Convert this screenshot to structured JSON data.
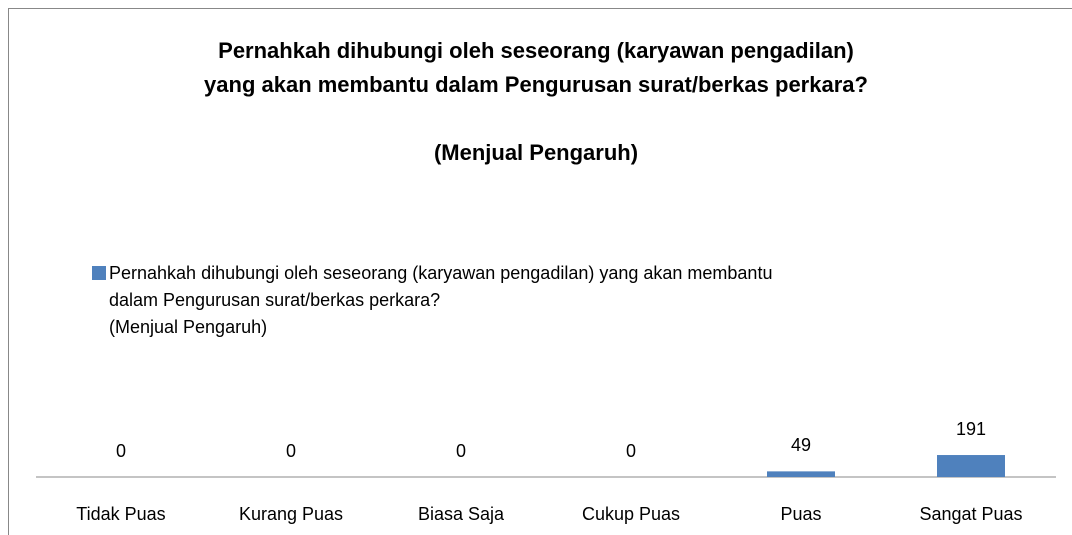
{
  "chart_data": {
    "type": "bar",
    "title": "Pernahkah dihubungi oleh seseorang (karyawan pengadilan)\nyang akan membantu dalam Pengurusan surat/berkas perkara?",
    "subtitle": "(Menjual Pengaruh)",
    "categories": [
      "Tidak Puas",
      "Kurang Puas",
      "Biasa Saja",
      "Cukup Puas",
      "Puas",
      "Sangat Puas"
    ],
    "series": [
      {
        "name": "Pernahkah dihubungi oleh seseorang (karyawan pengadilan) yang akan membantu\ndalam Pengurusan surat/berkas perkara?\n(Menjual Pengaruh)",
        "color": "#4f81bd",
        "values": [
          0,
          0,
          0,
          0,
          49,
          191
        ]
      }
    ],
    "legend": "top-left"
  }
}
